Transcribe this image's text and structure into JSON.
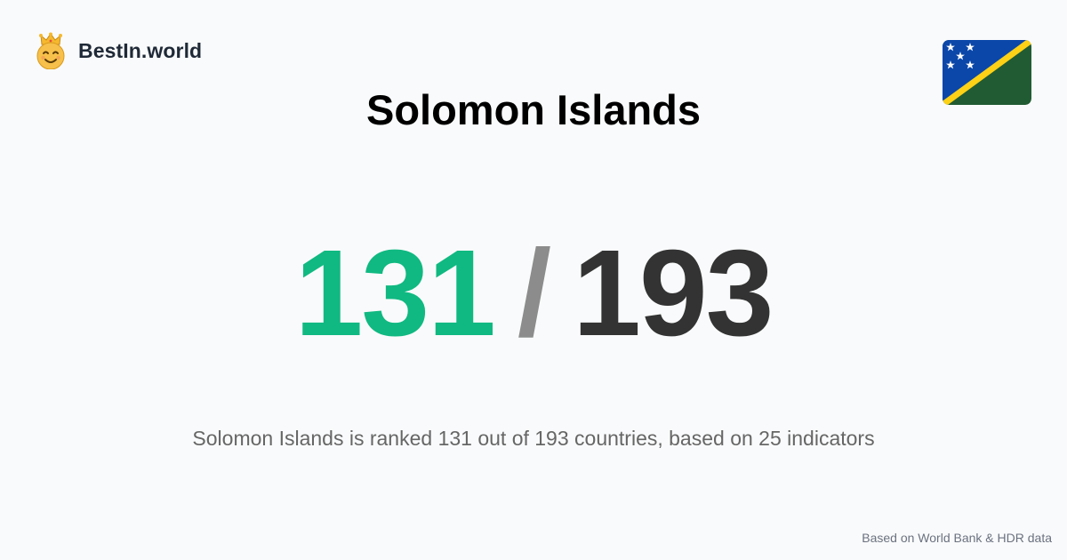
{
  "brand": {
    "name": "BestIn.world",
    "logo_icon": "crown-smiley-icon"
  },
  "country": {
    "name": "Solomon Islands",
    "flag_icon": "solomon-islands-flag-icon"
  },
  "ranking": {
    "rank": "131",
    "separator": "/",
    "total": "193"
  },
  "summary": "Solomon Islands is ranked 131 out of 193 countries, based on 25 indicators",
  "footer": {
    "source": "Based on World Bank & HDR data"
  },
  "colors": {
    "rank": "#10b981",
    "separator": "#8c8c8c",
    "total": "#333333",
    "background": "#f9fafb"
  }
}
